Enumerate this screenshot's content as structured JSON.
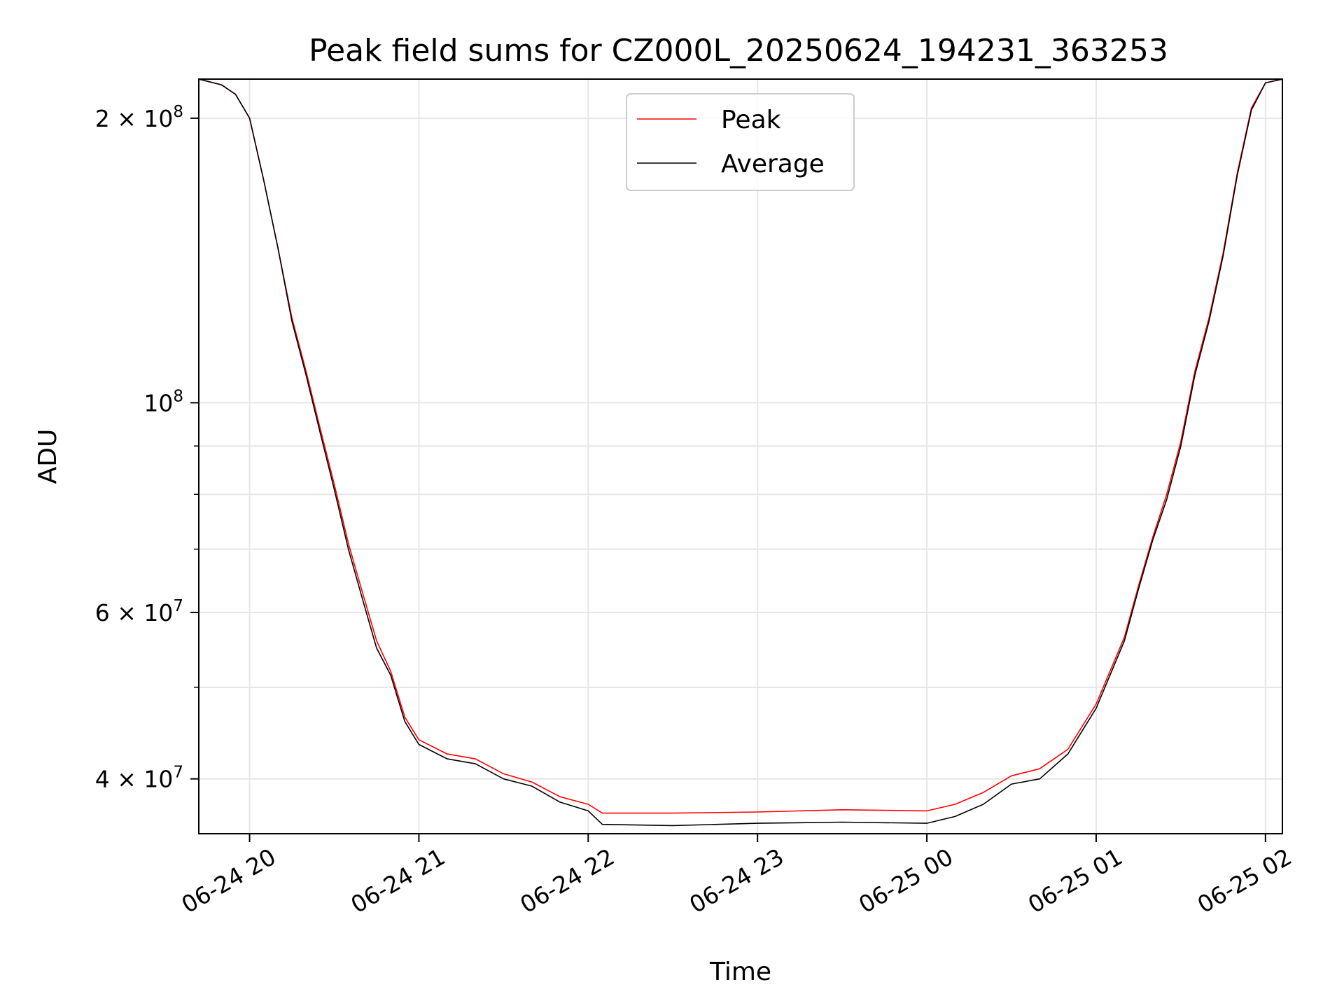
{
  "chart_data": {
    "type": "line",
    "title": "Peak field sums for CZ000L_20250624_194231_363253",
    "xlabel": "Time",
    "ylabel": "ADU",
    "y_scale": "log",
    "xlim": [
      "2025-06-24 19:42",
      "2025-06-25 02:06"
    ],
    "ylim": [
      35000000,
      220000000
    ],
    "x_ticks": [
      "06-24 20",
      "06-24 21",
      "06-24 22",
      "06-24 23",
      "06-25 00",
      "06-25 01",
      "06-25 02"
    ],
    "x_tick_values": [
      "2025-06-24 20:00",
      "2025-06-24 21:00",
      "2025-06-24 22:00",
      "2025-06-24 23:00",
      "2025-06-25 00:00",
      "2025-06-25 01:00",
      "2025-06-25 02:00"
    ],
    "y_ticks": [
      {
        "label_base": "2 × 10",
        "exp": "8",
        "value": 200000000
      },
      {
        "label_base": "10",
        "exp": "8",
        "value": 100000000
      },
      {
        "label_base": "6 × 10",
        "exp": "7",
        "value": 60000000
      },
      {
        "label_base": "4 × 10",
        "exp": "7",
        "value": 40000000
      }
    ],
    "grid": true,
    "legend_position": "upper-center",
    "series": [
      {
        "name": "Peak",
        "color": "#ff0000",
        "x": [
          "2025-06-24 19:42",
          "2025-06-24 19:50",
          "2025-06-24 19:55",
          "2025-06-24 20:00",
          "2025-06-24 20:05",
          "2025-06-24 20:10",
          "2025-06-24 20:15",
          "2025-06-24 20:20",
          "2025-06-24 20:25",
          "2025-06-24 20:30",
          "2025-06-24 20:35",
          "2025-06-24 20:40",
          "2025-06-24 20:45",
          "2025-06-24 20:50",
          "2025-06-24 20:55",
          "2025-06-24 21:00",
          "2025-06-24 21:10",
          "2025-06-24 21:20",
          "2025-06-24 21:30",
          "2025-06-24 21:40",
          "2025-06-24 21:50",
          "2025-06-24 22:00",
          "2025-06-24 22:05",
          "2025-06-24 22:30",
          "2025-06-24 23:00",
          "2025-06-24 23:30",
          "2025-06-25 00:00",
          "2025-06-25 00:10",
          "2025-06-25 00:20",
          "2025-06-25 00:30",
          "2025-06-25 00:40",
          "2025-06-25 00:50",
          "2025-06-25 01:00",
          "2025-06-25 01:10",
          "2025-06-25 01:15",
          "2025-06-25 01:20",
          "2025-06-25 01:25",
          "2025-06-25 01:30",
          "2025-06-25 01:35",
          "2025-06-25 01:40",
          "2025-06-25 01:45",
          "2025-06-25 01:50",
          "2025-06-25 01:55",
          "2025-06-25 02:00",
          "2025-06-25 02:06"
        ],
        "values": [
          220000000,
          217000000,
          212000000,
          200000000,
          172000000,
          146000000,
          123000000,
          108000000,
          94000000,
          82000000,
          71000000,
          63000000,
          56000000,
          52000000,
          46500000,
          44000000,
          42500000,
          42000000,
          40500000,
          39700000,
          38300000,
          37600000,
          36800000,
          36800000,
          36900000,
          37100000,
          37000000,
          37600000,
          38700000,
          40300000,
          41000000,
          43000000,
          48000000,
          56500000,
          64000000,
          72000000,
          80000000,
          91000000,
          108000000,
          123000000,
          144000000,
          175000000,
          205000000,
          218000000,
          220000000
        ]
      },
      {
        "name": "Average",
        "color": "#000000",
        "x": [
          "2025-06-24 19:42",
          "2025-06-24 19:50",
          "2025-06-24 19:55",
          "2025-06-24 20:00",
          "2025-06-24 20:05",
          "2025-06-24 20:10",
          "2025-06-24 20:15",
          "2025-06-24 20:20",
          "2025-06-24 20:25",
          "2025-06-24 20:30",
          "2025-06-24 20:35",
          "2025-06-24 20:40",
          "2025-06-24 20:45",
          "2025-06-24 20:50",
          "2025-06-24 20:55",
          "2025-06-24 21:00",
          "2025-06-24 21:10",
          "2025-06-24 21:20",
          "2025-06-24 21:30",
          "2025-06-24 21:40",
          "2025-06-24 21:50",
          "2025-06-24 22:00",
          "2025-06-24 22:05",
          "2025-06-24 22:30",
          "2025-06-24 23:00",
          "2025-06-24 23:30",
          "2025-06-25 00:00",
          "2025-06-25 00:10",
          "2025-06-25 00:20",
          "2025-06-25 00:30",
          "2025-06-25 00:40",
          "2025-06-25 00:50",
          "2025-06-25 01:00",
          "2025-06-25 01:10",
          "2025-06-25 01:15",
          "2025-06-25 01:20",
          "2025-06-25 01:25",
          "2025-06-25 01:30",
          "2025-06-25 01:35",
          "2025-06-25 01:40",
          "2025-06-25 01:45",
          "2025-06-25 01:50",
          "2025-06-25 01:55",
          "2025-06-25 02:00",
          "2025-06-25 02:06"
        ],
        "values": [
          220000000,
          217000000,
          212000000,
          200000000,
          172000000,
          146000000,
          122000000,
          107000000,
          93000000,
          81000000,
          70000000,
          62000000,
          55000000,
          51500000,
          46000000,
          43500000,
          42000000,
          41500000,
          40000000,
          39300000,
          37800000,
          37000000,
          35800000,
          35700000,
          35900000,
          36000000,
          35900000,
          36500000,
          37600000,
          39500000,
          40000000,
          42500000,
          47500000,
          56000000,
          63500000,
          71500000,
          79000000,
          90000000,
          107000000,
          122000000,
          143000000,
          174000000,
          204000000,
          218000000,
          220000000
        ]
      }
    ]
  }
}
